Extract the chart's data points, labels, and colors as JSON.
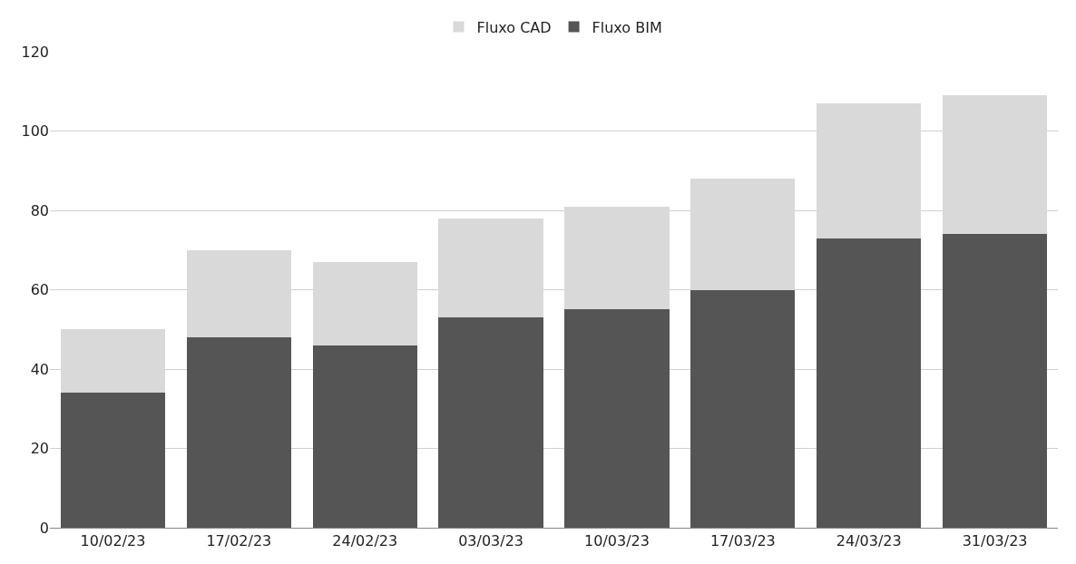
{
  "chart_data": {
    "type": "bar",
    "stacked": true,
    "categories": [
      "10/02/23",
      "17/02/23",
      "24/02/23",
      "03/03/23",
      "10/03/23",
      "17/03/23",
      "24/03/23",
      "31/03/23"
    ],
    "series": [
      {
        "name": "Fluxo BIM",
        "color": "#555555",
        "values": [
          34,
          48,
          46,
          53,
          55,
          60,
          73,
          74
        ]
      },
      {
        "name": "Fluxo CAD",
        "color": "#d9d9d9",
        "values": [
          16,
          22,
          21,
          25,
          26,
          28,
          34,
          35
        ]
      }
    ],
    "ylim": [
      0,
      120
    ],
    "yticks": [
      0,
      20,
      40,
      60,
      80,
      100,
      120
    ],
    "grid": "y",
    "legend": "top"
  }
}
